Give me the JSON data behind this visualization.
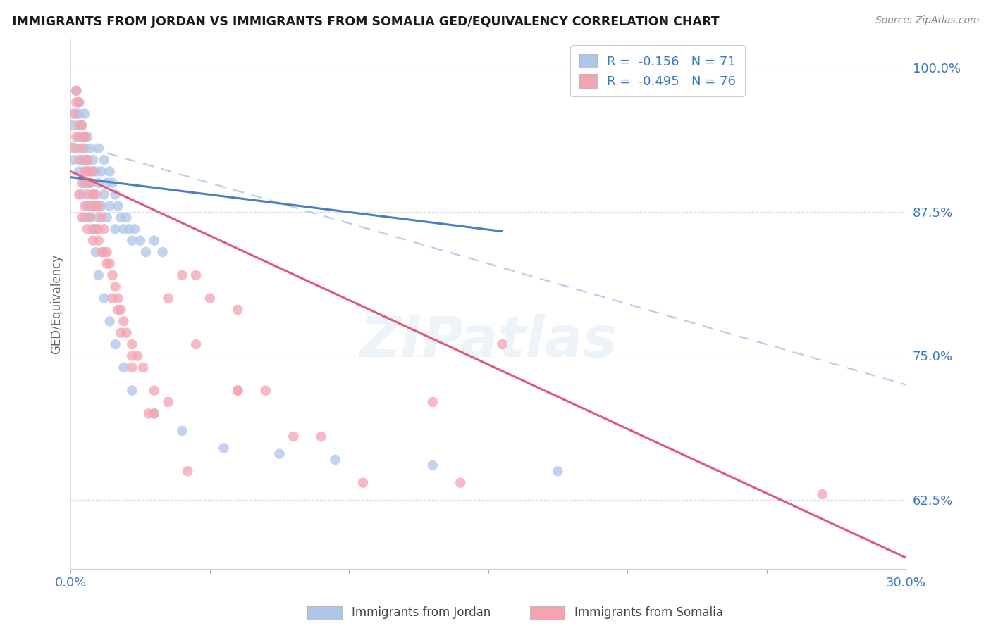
{
  "title": "IMMIGRANTS FROM JORDAN VS IMMIGRANTS FROM SOMALIA GED/EQUIVALENCY CORRELATION CHART",
  "source": "Source: ZipAtlas.com",
  "ylabel": "GED/Equivalency",
  "xlim": [
    0.0,
    0.3
  ],
  "ylim": [
    0.565,
    1.025
  ],
  "yticks": [
    0.625,
    0.75,
    0.875,
    1.0
  ],
  "ytick_labels": [
    "62.5%",
    "75.0%",
    "87.5%",
    "100.0%"
  ],
  "xticks": [
    0.0,
    0.05,
    0.1,
    0.15,
    0.2,
    0.25,
    0.3
  ],
  "xtick_labels": [
    "0.0%",
    "",
    "",
    "",
    "",
    "",
    "30.0%"
  ],
  "legend_label1": "Immigrants from Jordan",
  "legend_label2": "Immigrants from Somalia",
  "jordan_R": -0.156,
  "jordan_N": 71,
  "somalia_R": -0.495,
  "somalia_N": 76,
  "color_jordan": "#aec6e8",
  "color_somalia": "#f4a3b0",
  "color_jordan_line": "#4a7fc1",
  "color_somalia_line": "#e05a78",
  "background_color": "#ffffff",
  "watermark": "ZIPatlas",
  "jordan_line": {
    "x0": 0.0,
    "y0": 0.905,
    "x1": 0.155,
    "y1": 0.858
  },
  "somalia_line": {
    "x0": 0.0,
    "y0": 0.91,
    "x1": 0.3,
    "y1": 0.575
  },
  "dashed_line": {
    "x0": 0.0,
    "y0": 0.935,
    "x1": 0.3,
    "y1": 0.725
  },
  "jordan_x": [
    0.001,
    0.001,
    0.002,
    0.002,
    0.003,
    0.003,
    0.003,
    0.004,
    0.004,
    0.004,
    0.005,
    0.005,
    0.005,
    0.005,
    0.006,
    0.006,
    0.006,
    0.007,
    0.007,
    0.007,
    0.008,
    0.008,
    0.008,
    0.009,
    0.009,
    0.01,
    0.01,
    0.01,
    0.011,
    0.011,
    0.012,
    0.012,
    0.013,
    0.013,
    0.014,
    0.014,
    0.015,
    0.016,
    0.016,
    0.017,
    0.018,
    0.019,
    0.02,
    0.021,
    0.022,
    0.023,
    0.025,
    0.027,
    0.03,
    0.033,
    0.002,
    0.003,
    0.004,
    0.005,
    0.006,
    0.007,
    0.008,
    0.009,
    0.01,
    0.012,
    0.014,
    0.016,
    0.019,
    0.022,
    0.03,
    0.04,
    0.055,
    0.075,
    0.095,
    0.13,
    0.175
  ],
  "jordan_y": [
    0.95,
    0.92,
    0.96,
    0.93,
    0.97,
    0.94,
    0.91,
    0.95,
    0.92,
    0.89,
    0.96,
    0.93,
    0.9,
    0.87,
    0.94,
    0.91,
    0.88,
    0.93,
    0.9,
    0.87,
    0.92,
    0.89,
    0.86,
    0.91,
    0.88,
    0.93,
    0.9,
    0.87,
    0.91,
    0.88,
    0.92,
    0.89,
    0.9,
    0.87,
    0.91,
    0.88,
    0.9,
    0.89,
    0.86,
    0.88,
    0.87,
    0.86,
    0.87,
    0.86,
    0.85,
    0.86,
    0.85,
    0.84,
    0.85,
    0.84,
    0.98,
    0.96,
    0.94,
    0.92,
    0.9,
    0.88,
    0.86,
    0.84,
    0.82,
    0.8,
    0.78,
    0.76,
    0.74,
    0.72,
    0.7,
    0.685,
    0.67,
    0.665,
    0.66,
    0.655,
    0.65
  ],
  "somalia_x": [
    0.001,
    0.001,
    0.002,
    0.002,
    0.003,
    0.003,
    0.003,
    0.004,
    0.004,
    0.004,
    0.005,
    0.005,
    0.005,
    0.006,
    0.006,
    0.006,
    0.007,
    0.007,
    0.008,
    0.008,
    0.008,
    0.009,
    0.009,
    0.01,
    0.01,
    0.011,
    0.011,
    0.012,
    0.013,
    0.014,
    0.015,
    0.016,
    0.017,
    0.018,
    0.019,
    0.02,
    0.022,
    0.024,
    0.026,
    0.03,
    0.035,
    0.04,
    0.045,
    0.05,
    0.06,
    0.07,
    0.003,
    0.005,
    0.007,
    0.009,
    0.012,
    0.015,
    0.018,
    0.022,
    0.028,
    0.035,
    0.045,
    0.06,
    0.08,
    0.105,
    0.13,
    0.155,
    0.002,
    0.004,
    0.006,
    0.008,
    0.01,
    0.013,
    0.017,
    0.022,
    0.03,
    0.042,
    0.06,
    0.09,
    0.14,
    0.27
  ],
  "somalia_y": [
    0.96,
    0.93,
    0.97,
    0.94,
    0.95,
    0.92,
    0.89,
    0.93,
    0.9,
    0.87,
    0.94,
    0.91,
    0.88,
    0.92,
    0.89,
    0.86,
    0.9,
    0.87,
    0.91,
    0.88,
    0.85,
    0.89,
    0.86,
    0.88,
    0.85,
    0.87,
    0.84,
    0.86,
    0.84,
    0.83,
    0.82,
    0.81,
    0.8,
    0.79,
    0.78,
    0.77,
    0.76,
    0.75,
    0.74,
    0.72,
    0.71,
    0.82,
    0.82,
    0.8,
    0.79,
    0.72,
    0.97,
    0.94,
    0.91,
    0.88,
    0.84,
    0.8,
    0.77,
    0.74,
    0.7,
    0.8,
    0.76,
    0.72,
    0.68,
    0.64,
    0.71,
    0.76,
    0.98,
    0.95,
    0.92,
    0.89,
    0.86,
    0.83,
    0.79,
    0.75,
    0.7,
    0.65,
    0.72,
    0.68,
    0.64,
    0.63
  ]
}
